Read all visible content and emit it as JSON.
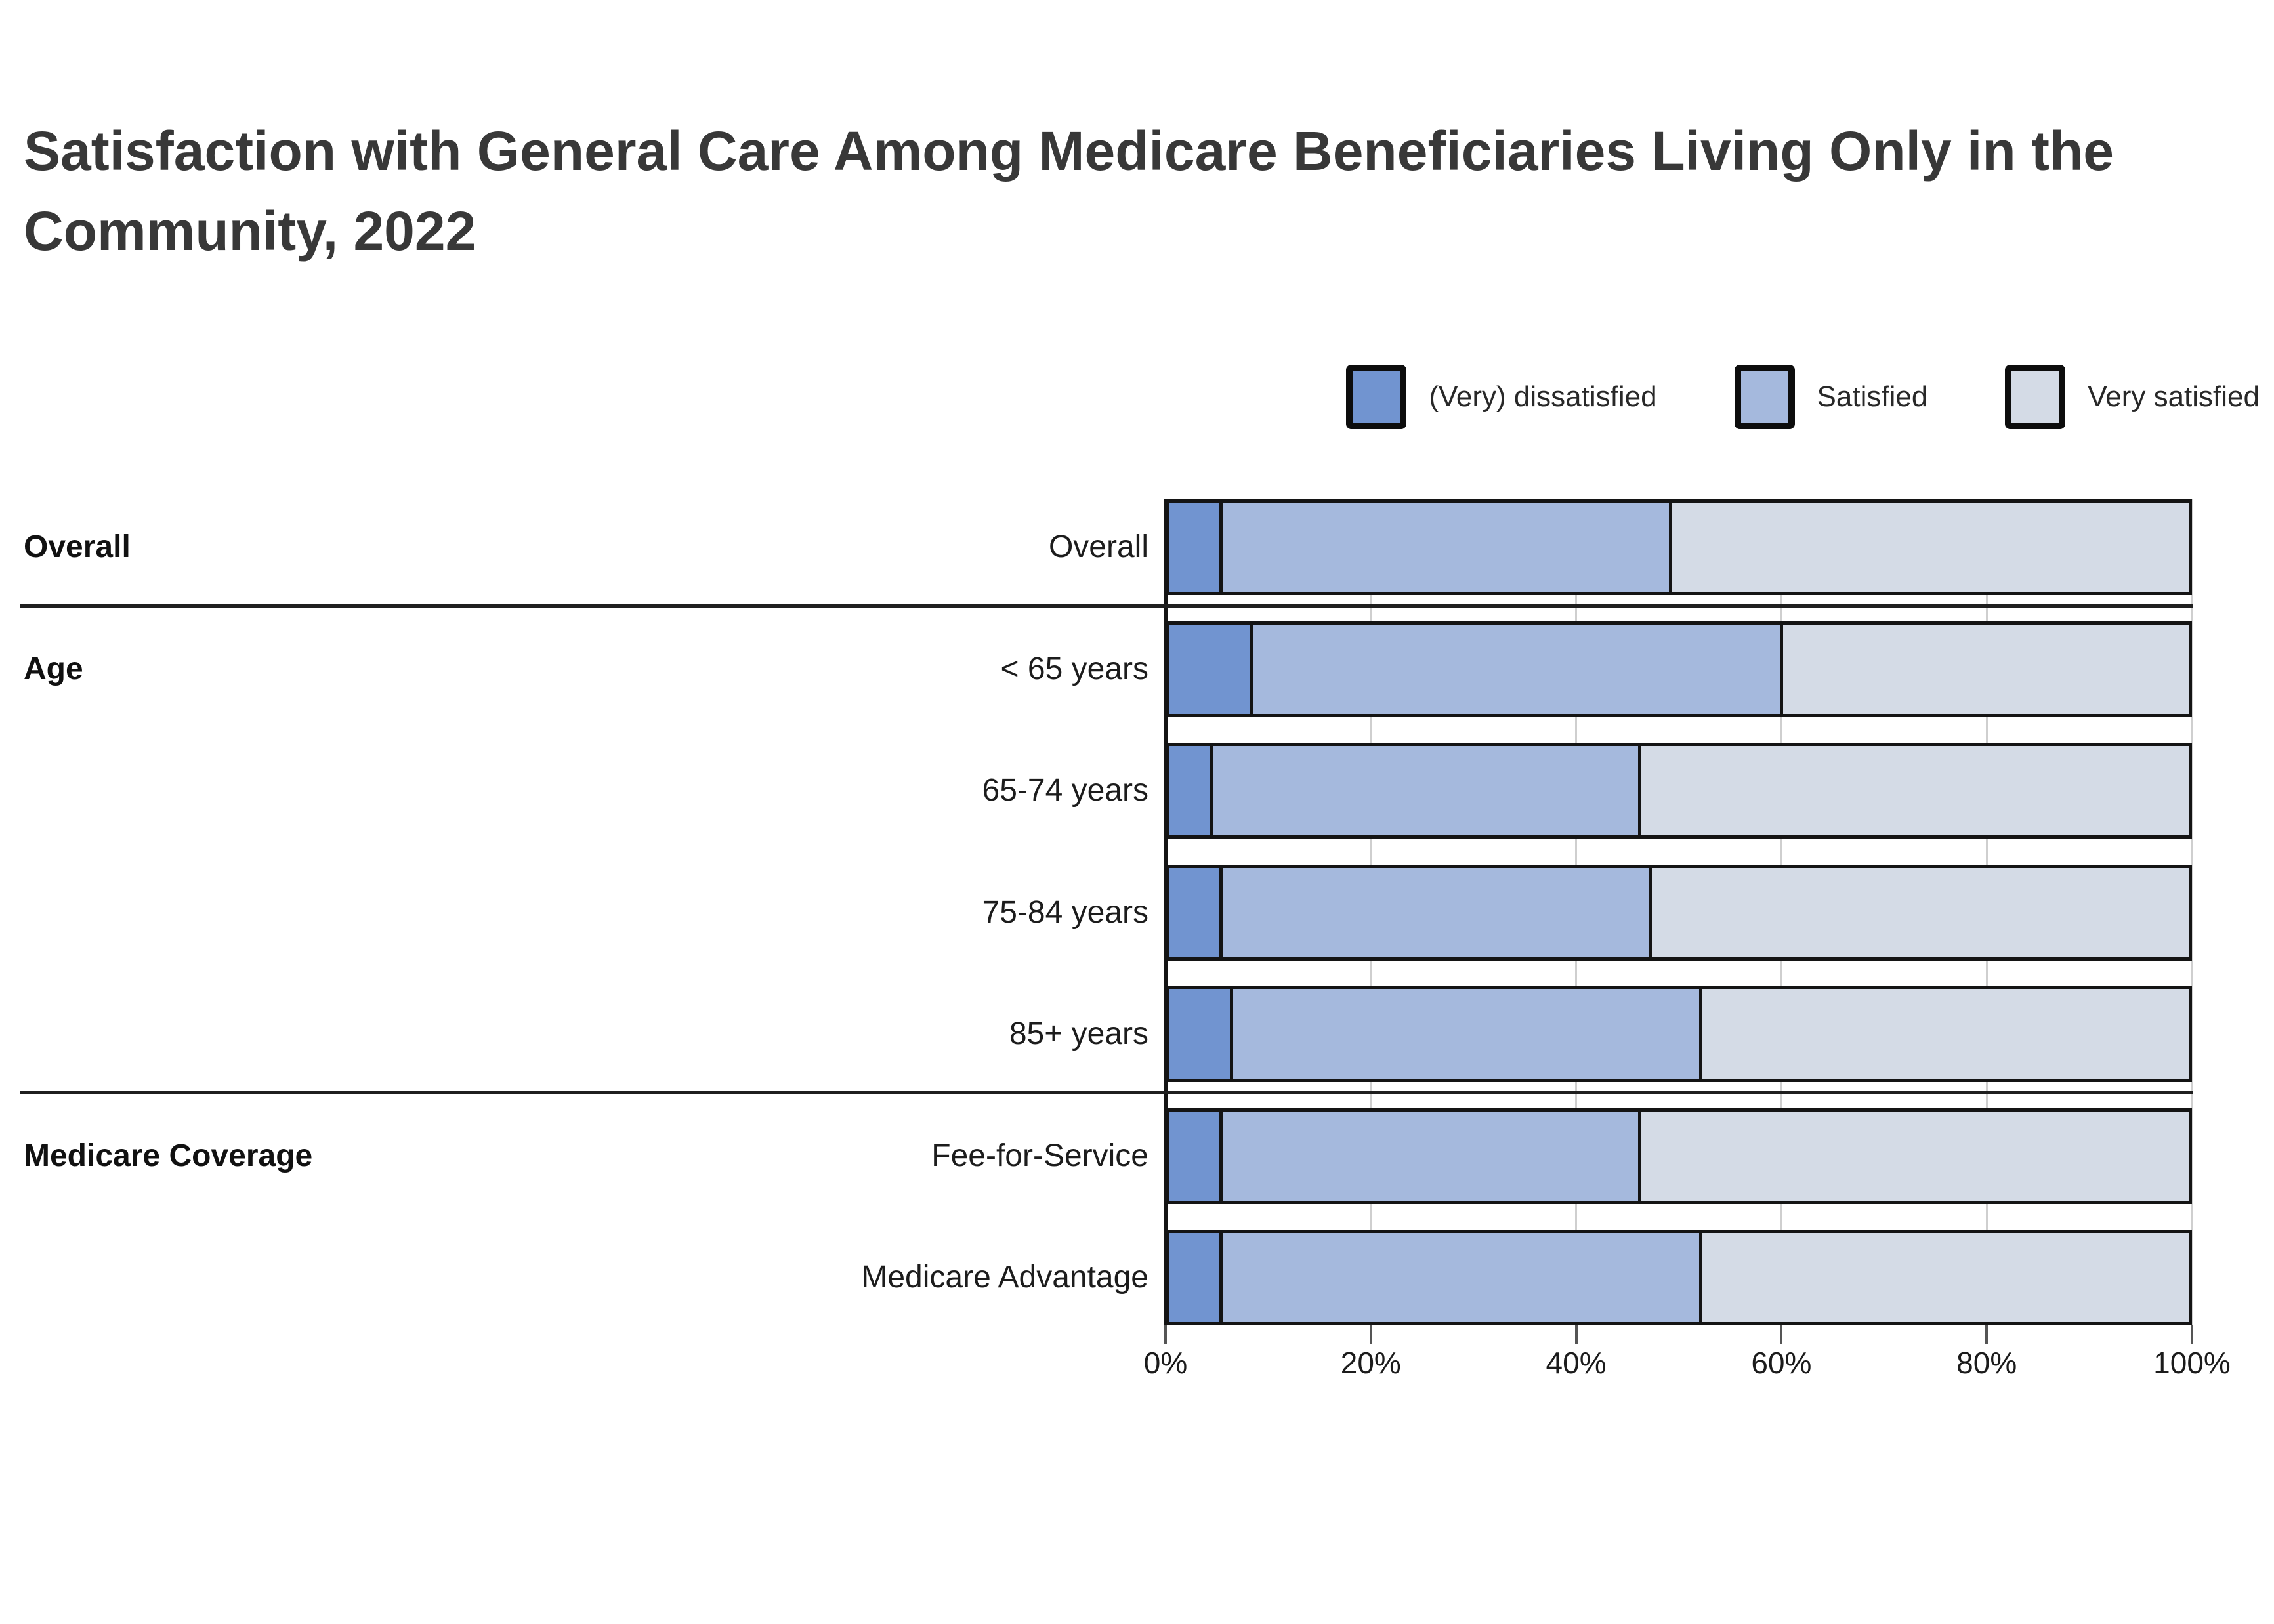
{
  "title": "Satisfaction with General Care Among Medicare Beneficiaries Living Only in the Community, 2022",
  "legend": [
    {
      "label": "(Very) dissatisfied",
      "color": "#7194d0"
    },
    {
      "label": "Satisfied",
      "color": "#a5b9dd"
    },
    {
      "label": "Very satisfied",
      "color": "#d4dbe6"
    }
  ],
  "chart_data": {
    "type": "bar",
    "orientation": "horizontal",
    "stacked": true,
    "unit": "percent",
    "title": "Satisfaction with General Care Among Medicare Beneficiaries Living Only in the Community, 2022",
    "xlim": [
      0,
      100
    ],
    "x_ticks": [
      "0%",
      "20%",
      "40%",
      "60%",
      "80%",
      "100%"
    ],
    "grid": true,
    "legend_position": "top-right",
    "series": [
      "(Very) dissatisfied",
      "Satisfied",
      "Very satisfied"
    ],
    "groups": [
      {
        "label": "Overall",
        "rows": [
          {
            "label": "Overall",
            "values": [
              5,
              44,
              51
            ]
          }
        ]
      },
      {
        "label": "Age",
        "rows": [
          {
            "label": "< 65 years",
            "values": [
              8,
              52,
              40
            ]
          },
          {
            "label": "65-74 years",
            "values": [
              4,
              42,
              54
            ]
          },
          {
            "label": "75-84 years",
            "values": [
              5,
              42,
              53
            ]
          },
          {
            "label": "85+ years",
            "values": [
              6,
              46,
              48
            ]
          }
        ]
      },
      {
        "label": "Medicare Coverage",
        "rows": [
          {
            "label": "Fee-for-Service",
            "values": [
              5,
              41,
              54
            ]
          },
          {
            "label": "Medicare Advantage",
            "values": [
              5,
              47,
              48
            ]
          }
        ]
      }
    ]
  },
  "colors": {
    "bar_border": "#141414",
    "gridline": "#cfcfcf",
    "separator": "#1f1f1f",
    "title_text": "#383838",
    "label_text": "#1c1c1c"
  }
}
